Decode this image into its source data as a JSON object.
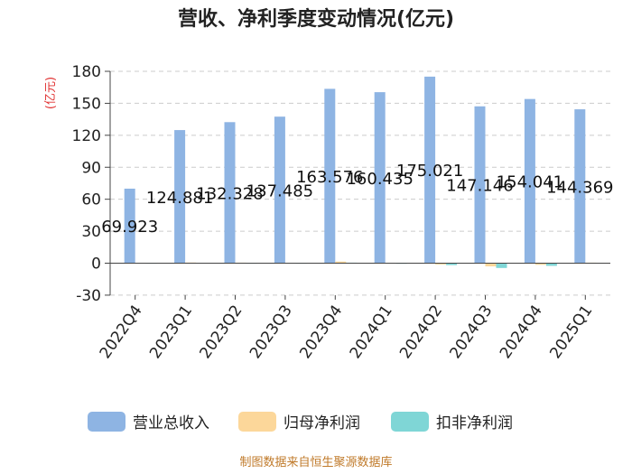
{
  "chart_data": {
    "type": "bar",
    "title": "营收、净利季度变动情况(亿元)",
    "ylabel": "(亿元)",
    "categories": [
      "2022Q4",
      "2023Q1",
      "2023Q2",
      "2023Q3",
      "2023Q4",
      "2024Q1",
      "2024Q2",
      "2024Q3",
      "2024Q4",
      "2025Q1"
    ],
    "series": [
      {
        "name": "营业总收入",
        "color": "#8eb4e3",
        "values": [
          69.923,
          124.881,
          132.328,
          137.485,
          163.576,
          160.435,
          175.021,
          147.146,
          154.041,
          144.369
        ]
      },
      {
        "name": "归母净利润",
        "color": "#fcd79a",
        "values": [
          0.4,
          0.6,
          0.5,
          0.4,
          1.5,
          0.3,
          -1.2,
          -3.0,
          -1.5,
          0.5
        ]
      },
      {
        "name": "扣非净利润",
        "color": "#7fd6d6",
        "values": [
          0.2,
          0.3,
          0.2,
          0.2,
          0.5,
          0.1,
          -1.8,
          -4.5,
          -2.5,
          0.3
        ]
      }
    ],
    "data_labels": [
      "69.923",
      "124.881",
      "132.328",
      "137.485",
      "163.576",
      "160.435",
      "175.021",
      "147.146",
      "154.041",
      "144.369"
    ],
    "yticks": [
      "180",
      "150",
      "120",
      "90",
      "60",
      "30",
      "0",
      "-30"
    ],
    "ylim": [
      -30,
      180
    ],
    "grid": true,
    "legend_position": "bottom"
  },
  "source": "制图数据来自恒生聚源数据库"
}
